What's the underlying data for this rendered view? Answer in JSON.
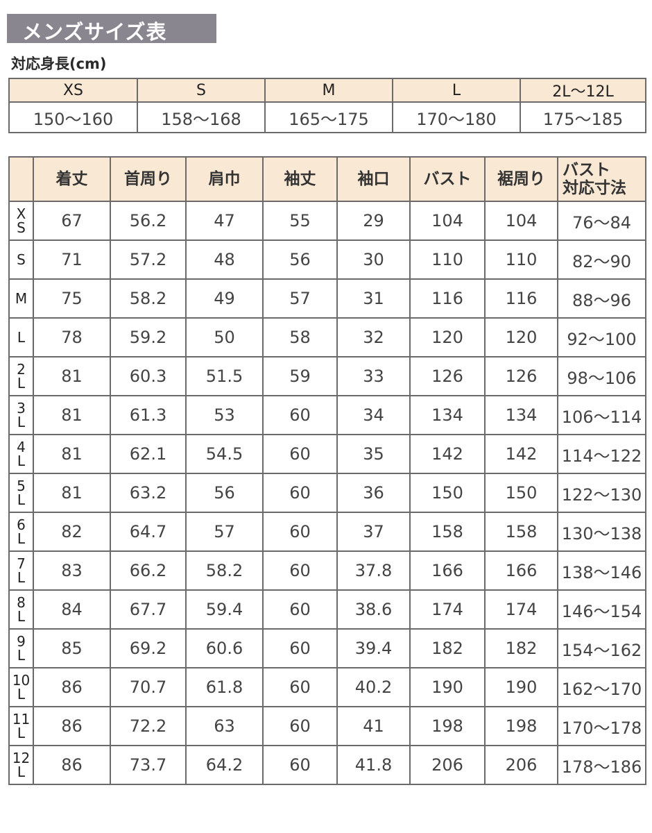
{
  "title": "メンズサイズ表",
  "height_section": {
    "label": "対応身長(cm)",
    "sizes": [
      "XS",
      "S",
      "M",
      "L",
      "2L〜12L"
    ],
    "ranges": [
      "150〜160",
      "158〜168",
      "165〜175",
      "170〜180",
      "175〜185"
    ]
  },
  "size_table": {
    "headers": [
      "着丈",
      "首周り",
      "肩巾",
      "袖丈",
      "袖口",
      "バスト",
      "裾周り"
    ],
    "last_header": [
      "バスト",
      "対応寸法"
    ],
    "rows": [
      {
        "label": [
          "X",
          "S"
        ],
        "values": [
          "67",
          "56.2",
          "47",
          "55",
          "29",
          "104",
          "104",
          "76〜84"
        ]
      },
      {
        "label": [
          "S"
        ],
        "values": [
          "71",
          "57.2",
          "48",
          "56",
          "30",
          "110",
          "110",
          "82〜90"
        ]
      },
      {
        "label": [
          "M"
        ],
        "values": [
          "75",
          "58.2",
          "49",
          "57",
          "31",
          "116",
          "116",
          "88〜96"
        ]
      },
      {
        "label": [
          "L"
        ],
        "values": [
          "78",
          "59.2",
          "50",
          "58",
          "32",
          "120",
          "120",
          "92〜100"
        ]
      },
      {
        "label": [
          "2",
          "L"
        ],
        "values": [
          "81",
          "60.3",
          "51.5",
          "59",
          "33",
          "126",
          "126",
          "98〜106"
        ]
      },
      {
        "label": [
          "3",
          "L"
        ],
        "values": [
          "81",
          "61.3",
          "53",
          "60",
          "34",
          "134",
          "134",
          "106〜114"
        ]
      },
      {
        "label": [
          "4",
          "L"
        ],
        "values": [
          "81",
          "62.1",
          "54.5",
          "60",
          "35",
          "142",
          "142",
          "114〜122"
        ]
      },
      {
        "label": [
          "5",
          "L"
        ],
        "values": [
          "81",
          "63.2",
          "56",
          "60",
          "36",
          "150",
          "150",
          "122〜130"
        ]
      },
      {
        "label": [
          "6",
          "L"
        ],
        "values": [
          "82",
          "64.7",
          "57",
          "60",
          "37",
          "158",
          "158",
          "130〜138"
        ]
      },
      {
        "label": [
          "7",
          "L"
        ],
        "values": [
          "83",
          "66.2",
          "58.2",
          "60",
          "37.8",
          "166",
          "166",
          "138〜146"
        ]
      },
      {
        "label": [
          "8",
          "L"
        ],
        "values": [
          "84",
          "67.7",
          "59.4",
          "60",
          "38.6",
          "174",
          "174",
          "146〜154"
        ]
      },
      {
        "label": [
          "9",
          "L"
        ],
        "values": [
          "85",
          "69.2",
          "60.6",
          "60",
          "39.4",
          "182",
          "182",
          "154〜162"
        ]
      },
      {
        "label": [
          "10",
          "L"
        ],
        "values": [
          "86",
          "70.7",
          "61.8",
          "60",
          "40.2",
          "190",
          "190",
          "162〜170"
        ]
      },
      {
        "label": [
          "11",
          "L"
        ],
        "values": [
          "86",
          "72.2",
          "63",
          "60",
          "41",
          "198",
          "198",
          "170〜178"
        ]
      },
      {
        "label": [
          "12",
          "L"
        ],
        "values": [
          "86",
          "73.7",
          "64.2",
          "60",
          "41.8",
          "206",
          "206",
          "178〜186"
        ]
      }
    ]
  }
}
